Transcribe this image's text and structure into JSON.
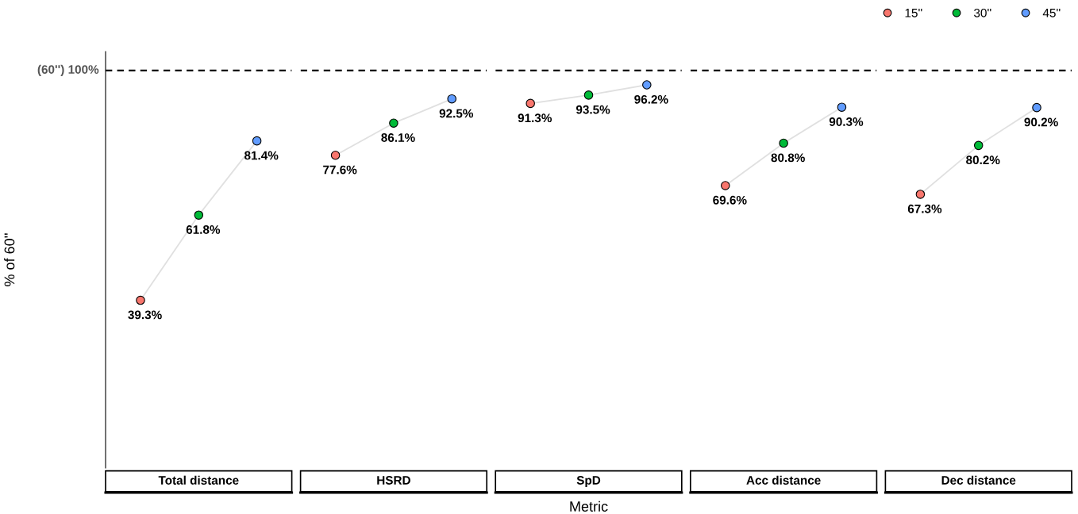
{
  "chart_data": [
    {
      "type": "line",
      "title": "Total distance",
      "ylabel": "% of 60''",
      "categories": [
        null,
        null,
        null
      ],
      "ylim": [
        -5,
        105
      ],
      "tick_labels": false,
      "ref_lines": [
        {
          "axis": "y",
          "value": 100,
          "label": "(60'') 100%",
          "line_style": "dashed",
          "color": "#000000"
        }
      ],
      "marker": "circle",
      "series": [
        {
          "color": "#e0e0e0",
          "colors": [
            "#f8766d",
            "#00ba38",
            "#619cff"
          ],
          "values": [
            39.3,
            61.8,
            81.4
          ],
          "value_labels": [
            "39.3%",
            "61.8%",
            "81.4%"
          ]
        }
      ]
    },
    {
      "type": "line",
      "title": "HSRD",
      "categories": [
        null,
        null,
        null
      ],
      "tick_labels": false,
      "ref_lines": [
        {
          "axis": "y",
          "value": 100,
          "line_style": "dashed",
          "color": "#000000"
        }
      ],
      "marker": "circle",
      "series": [
        {
          "color": "#e0e0e0",
          "colors": [
            "#f8766d",
            "#00ba38",
            "#619cff"
          ],
          "values": [
            77.6,
            86.1,
            92.5
          ],
          "value_labels": [
            "77.6%",
            "86.1%",
            "92.5%"
          ]
        }
      ]
    },
    {
      "type": "line",
      "title": "SpD",
      "xlabel": "Metric",
      "categories": [
        null,
        null,
        null
      ],
      "tick_labels": false,
      "ref_lines": [
        {
          "axis": "y",
          "value": 100,
          "line_style": "dashed",
          "color": "#000000"
        }
      ],
      "marker": "circle",
      "series": [
        {
          "color": "#e0e0e0",
          "colors": [
            "#f8766d",
            "#00ba38",
            "#619cff"
          ],
          "values": [
            91.3,
            93.5,
            96.2
          ],
          "value_labels": [
            "91.3%",
            "93.5%",
            "96.2%"
          ]
        }
      ]
    },
    {
      "type": "line",
      "title": "Acc distance",
      "categories": [
        null,
        null,
        null
      ],
      "tick_labels": false,
      "ref_lines": [
        {
          "axis": "y",
          "value": 100,
          "line_style": "dashed",
          "color": "#000000"
        }
      ],
      "marker": "circle",
      "series": [
        {
          "color": "#e0e0e0",
          "colors": [
            "#f8766d",
            "#00ba38",
            "#619cff"
          ],
          "values": [
            69.6,
            80.8,
            90.3
          ],
          "value_labels": [
            "69.6%",
            "80.8%",
            "90.3%"
          ]
        }
      ]
    },
    {
      "type": "line",
      "title": "Dec distance",
      "categories": [
        null,
        null,
        null
      ],
      "tick_labels": false,
      "ref_lines": [
        {
          "axis": "y",
          "value": 100,
          "line_style": "dashed",
          "color": "#000000"
        }
      ],
      "marker": "circle",
      "annotations": [
        "15''",
        "30''",
        "45''"
      ],
      "series": [
        {
          "color": "#e0e0e0",
          "colors": [
            "#f8766d",
            "#00ba38",
            "#619cff"
          ],
          "values": [
            67.3,
            80.2,
            90.2
          ],
          "value_labels": [
            "67.3%",
            "80.2%",
            "90.2%"
          ]
        }
      ]
    }
  ]
}
